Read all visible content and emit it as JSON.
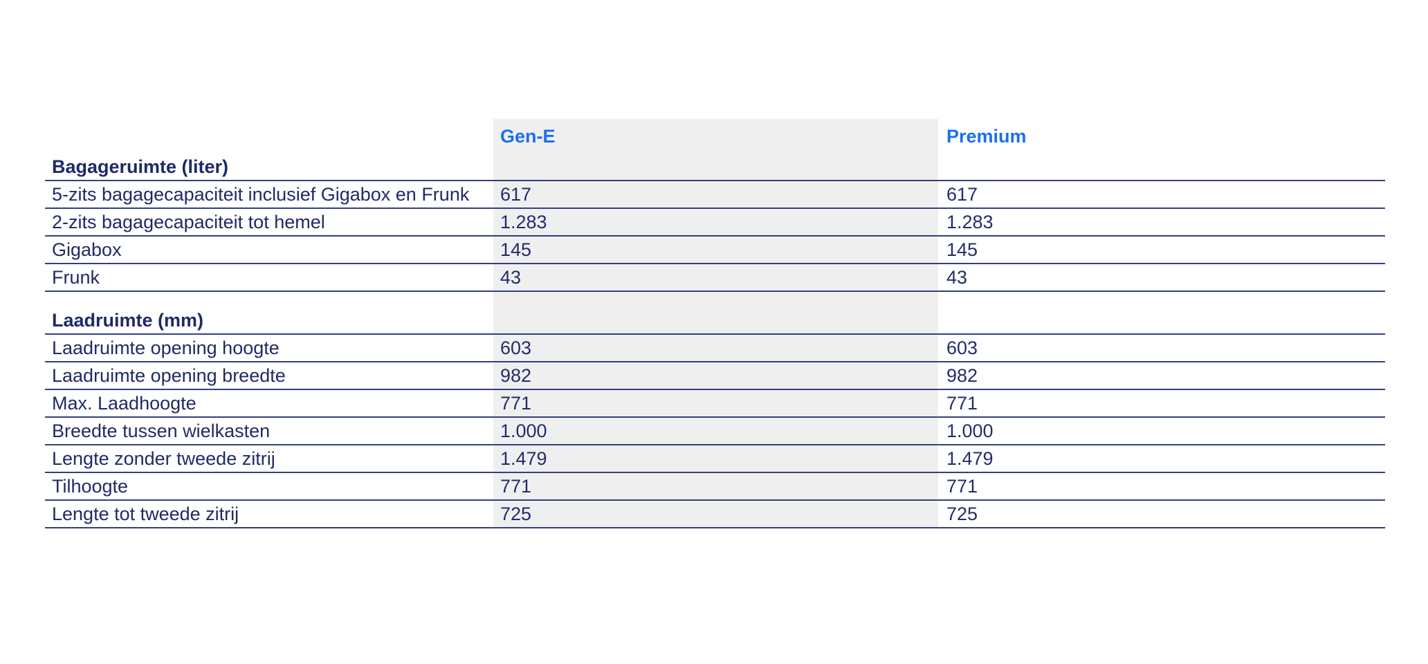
{
  "accent_colors": {
    "column_header_blue": "#1a70ee",
    "text_navy": "#202a66",
    "rule_navy": "#333f7e",
    "highlight_column_gray": "#efefef"
  },
  "table": {
    "header": {
      "label": "",
      "gen_e": "Gen-E",
      "premium": "Premium"
    },
    "rows": [
      {
        "type": "section",
        "label": "Bagageruimte (liter)",
        "gen_e": "",
        "premium": ""
      },
      {
        "type": "data",
        "label": "5-zits bagagecapaciteit inclusief Gigabox en Frunk",
        "gen_e": "617",
        "premium": "617"
      },
      {
        "type": "data",
        "label": "2-zits bagagecapaciteit tot hemel",
        "gen_e": "1.283",
        "premium": "1.283"
      },
      {
        "type": "data",
        "label": "Gigabox",
        "gen_e": "145",
        "premium": "145"
      },
      {
        "type": "data",
        "label": "Frunk",
        "gen_e": "43",
        "premium": "43"
      },
      {
        "type": "spacer",
        "label": "",
        "gen_e": "",
        "premium": ""
      },
      {
        "type": "section",
        "label": "Laadruimte (mm)",
        "gen_e": "",
        "premium": ""
      },
      {
        "type": "data",
        "label": "Laadruimte opening hoogte",
        "gen_e": "603",
        "premium": "603"
      },
      {
        "type": "data",
        "label": "Laadruimte opening breedte",
        "gen_e": "982",
        "premium": "982"
      },
      {
        "type": "data",
        "label": "Max. Laadhoogte",
        "gen_e": "771",
        "premium": "771"
      },
      {
        "type": "data",
        "label": "Breedte tussen wielkasten",
        "gen_e": "1.000",
        "premium": "1.000"
      },
      {
        "type": "data",
        "label": "Lengte zonder tweede zitrij",
        "gen_e": "1.479",
        "premium": "1.479"
      },
      {
        "type": "data",
        "label": "Tilhoogte",
        "gen_e": "771",
        "premium": "771"
      },
      {
        "type": "data",
        "label": "Lengte tot tweede zitrij",
        "gen_e": "725",
        "premium": "725"
      }
    ]
  }
}
